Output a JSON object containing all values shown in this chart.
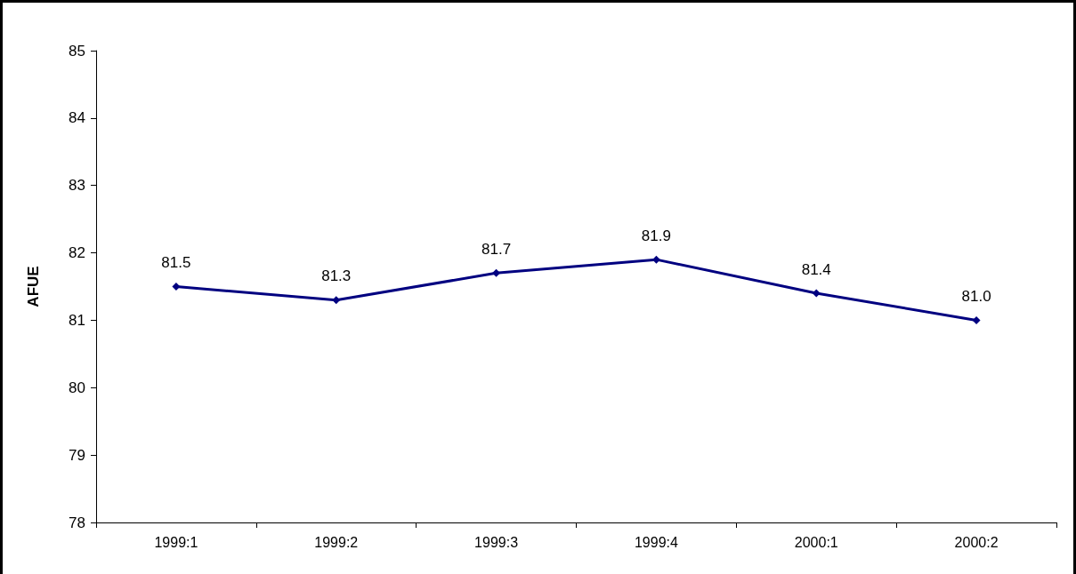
{
  "chart_data": {
    "type": "line",
    "ylabel": "AFUE",
    "categories": [
      "1999:1",
      "1999:2",
      "1999:3",
      "1999:4",
      "2000:1",
      "2000:2"
    ],
    "series": [
      {
        "color": "#000080",
        "values": [
          81.5,
          81.3,
          81.7,
          81.9,
          81.4,
          81.0
        ],
        "value_labels": [
          "81.5",
          "81.3",
          "81.7",
          "81.9",
          "81.4",
          "81.0"
        ]
      }
    ],
    "ylim": [
      78,
      85
    ],
    "yticks": [
      78,
      79,
      80,
      81,
      82,
      83,
      84,
      85
    ],
    "marker": "diamond",
    "line_style": "solid"
  }
}
